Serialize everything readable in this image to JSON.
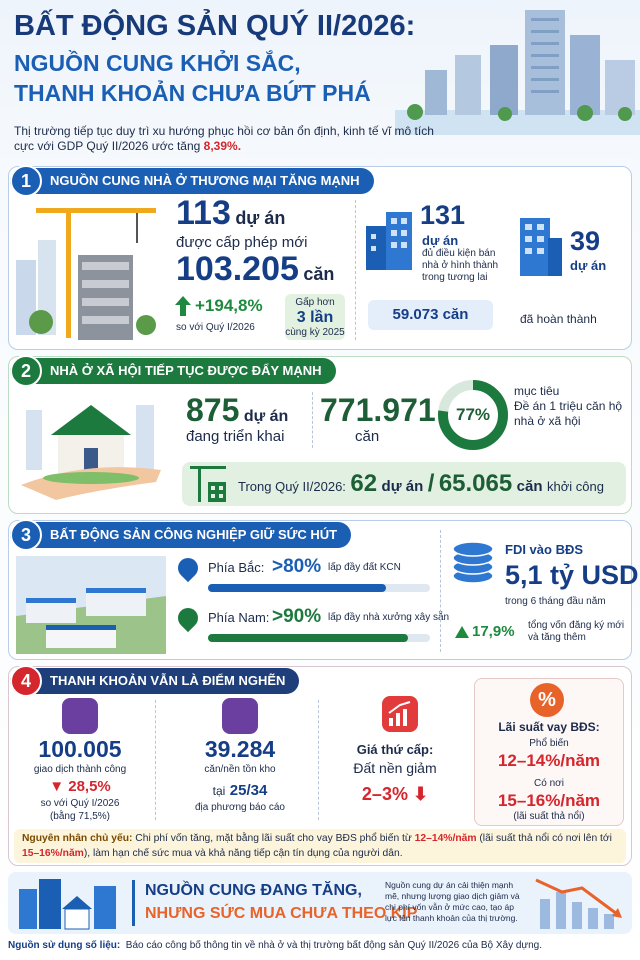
{
  "header": {
    "title": "BẤT ĐỘNG SẢN QUÝ II/2026:",
    "subtitle_1": "NGUỒN CUNG KHỞI SẮC,",
    "subtitle_2": "THANH KHOẢN CHƯA BỨT PHÁ",
    "intro": "Thị trường tiếp tục duy trì xu hướng phục hồi cơ bản ổn định, kinh tế vĩ mô tích cực với GDP Quý II/2026 ước tăng",
    "intro_highlight": "8,39%."
  },
  "supply": {
    "number": "1",
    "title": "NGUỒN CUNG NHÀ Ở THƯƠNG MẠI TĂNG MẠNH",
    "licensed": "113",
    "licensed_unit": "dự án",
    "licensed_text": "được cấp phép mới",
    "units": "103.205",
    "units_unit": "căn",
    "growth": "+194,8%",
    "growth_text": "so với Quý I/2026",
    "times_pre": "Gấp hơn",
    "times": "3 lần",
    "times_post": "cùng kỳ 2025",
    "eligible": "131",
    "eligible_unit": "dự án",
    "eligible_text": "đủ điều kiện bán nhà ở hình thành trong tương lai",
    "eligible_units": "59.073 căn",
    "done": "39",
    "done_unit": "dự án",
    "done_text": "đã hoàn thành"
  },
  "social_housing": {
    "number": "2",
    "title": "NHÀ Ở XÃ HỘI TIẾP TỤC ĐƯỢC ĐẨY MẠNH",
    "projects": "875",
    "projects_unit": "dự án",
    "projects_text": "đang triển khai",
    "units": "771.971",
    "units_unit": "căn",
    "target": {
      "value": 77,
      "label": "77%"
    },
    "target_pre": "mục tiêu",
    "target_text": "Đề án 1 triệu căn hộ nhà ở xã hội",
    "quarter_label": "Trong Quý II/2026:",
    "started_projects": "62",
    "started_projects_unit": "dự án",
    "sep": "/",
    "started_units": "65.065",
    "started_units_unit": "căn",
    "started_text": "khởi công"
  },
  "industrial": {
    "number": "3",
    "title": "BẤT ĐỘNG SẢN CÔNG NGHIỆP GIỮ SỨC HÚT",
    "regions": [
      {
        "name": "Phía Bắc:",
        "rate": {
          "value": 80,
          "label": ">80%"
        },
        "text": "lấp đầy đất KCN"
      },
      {
        "name": "Phía Nam:",
        "rate": {
          "value": 90,
          "label": ">90%"
        },
        "text": "lấp đầy nhà xưởng xây sẵn"
      }
    ],
    "fdi_label": "FDI vào BĐS",
    "fdi_value": "5,1 tỷ USD",
    "fdi_period": "trong 6 tháng đầu năm",
    "fdi_growth": "17,9%",
    "fdi_growth_text": "tổng vốn đăng ký mới và tăng thêm"
  },
  "liquidity": {
    "number": "4",
    "title": "THANH KHOẢN VẪN LÀ ĐIỂM NGHẼN",
    "transactions": "100.005",
    "transactions_text": "giao dịch thành công",
    "transactions_change": "28,5%",
    "transactions_change_text": "so với Quý I/2026",
    "transactions_ratio": "(bằng 71,5%)",
    "inventory": "39.284",
    "inventory_text": "căn/nền tồn kho",
    "inventory_pre": "tại",
    "inventory_places": "25/34",
    "inventory_places_text": "địa phương báo cáo",
    "secondary_label": "Giá thứ cấp:",
    "secondary_text": "Đất nền giảm",
    "secondary_value": "2–3%",
    "rate_icon": "%",
    "rate_label": "Lãi suất vay BĐS:",
    "rate_common_label": "Phổ biến",
    "rate_common": "12–14%/năm",
    "rate_peak_label": "Có nơi",
    "rate_peak": "15–16%/năm",
    "rate_note": "(lãi suất thả nổi)",
    "cause_lead": "Nguyên nhân chủ yếu:",
    "cause_1": "Chi phí vốn tăng, mặt bằng lãi suất cho vay BĐS phổ biến từ",
    "cause_hl_1": "12–14%/năm",
    "cause_2": "(lãi suất thả nổi có nơi lên tới",
    "cause_hl_2": "15–16%/năm",
    "cause_3": "), làm hạn chế sức mua và khả năng tiếp cận tín dụng của người dân."
  },
  "banner": {
    "line_1": "NGUỒN CUNG ĐANG TĂNG,",
    "line_2": "NHƯNG SỨC MUA CHƯA THEO KỊP",
    "note": "Nguồn cung dự án cải thiện mạnh mẽ, nhưng lượng giao dịch giảm và chi phí vốn vẫn ở mức cao, tạo áp lực lên thanh khoản của thị trường."
  },
  "source": {
    "label": "Nguồn sử dụng số liệu:",
    "text": "Báo cáo công bố thông tin về nhà ở và thị trường bất động sản Quý II/2026 của Bộ Xây dựng."
  }
}
